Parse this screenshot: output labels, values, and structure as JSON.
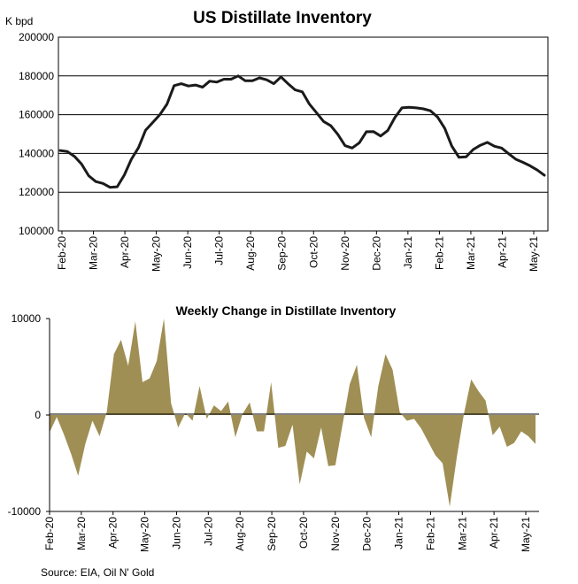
{
  "chart_data": [
    {
      "type": "line",
      "title": "US Distillate Inventory",
      "ylabel": "K bpd",
      "ylim": [
        100000,
        200000
      ],
      "yticks": [
        100000,
        120000,
        140000,
        160000,
        180000,
        200000
      ],
      "grid": true,
      "xticks": [
        "Feb-20",
        "Mar-20",
        "Apr-20",
        "May-20",
        "Jun-20",
        "Jul-20",
        "Aug-20",
        "Sep-20",
        "Oct-20",
        "Nov-20",
        "Dec-20",
        "Jan-21",
        "Feb-21",
        "Mar-21",
        "Apr-21",
        "May-21"
      ],
      "series": [
        {
          "color": "#1a1a1a",
          "values": [
            141500,
            141000,
            138500,
            134500,
            128500,
            125500,
            124500,
            122500,
            122800,
            128800,
            137000,
            143000,
            152000,
            156000,
            160000,
            165500,
            175000,
            176000,
            174800,
            175300,
            174200,
            177300,
            176800,
            178300,
            178300,
            180000,
            177500,
            177500,
            179000,
            178000,
            176000,
            179500,
            176000,
            172800,
            171800,
            165500,
            161000,
            156500,
            154300,
            149800,
            144000,
            142800,
            145500,
            151200,
            151300,
            149000,
            151800,
            158500,
            163500,
            163800,
            163500,
            163000,
            162000,
            158800,
            153000,
            143800,
            138000,
            138200,
            142000,
            144200,
            145700,
            143700,
            142800,
            139800,
            137000,
            135400,
            133600,
            131400,
            128700
          ]
        }
      ]
    },
    {
      "type": "area",
      "title": "Weekly Change in Distillate Inventory",
      "ylim": [
        -10000,
        10000
      ],
      "yticks": [
        -10000,
        0,
        10000
      ],
      "grid": false,
      "xticks": [
        "Feb-20",
        "Mar-20",
        "Apr-20",
        "May-20",
        "Jun-20",
        "Jul-20",
        "Aug-20",
        "Sep-20",
        "Oct-20",
        "Nov-20",
        "Dec-20",
        "Jan-21",
        "Feb-21",
        "Mar-21",
        "Apr-21",
        "May-21"
      ],
      "series": [
        {
          "color": "#a08f54",
          "values": [
            -1800,
            -200,
            -2000,
            -4000,
            -6300,
            -3000,
            -600,
            -2200,
            300,
            6300,
            7800,
            5100,
            9700,
            3400,
            3800,
            5600,
            10000,
            1200,
            -1300,
            200,
            -600,
            3000,
            -400,
            1000,
            400,
            1400,
            -2300,
            100,
            1300,
            -1700,
            -1700,
            3400,
            -3400,
            -3200,
            -1000,
            -7200,
            -3800,
            -4500,
            -1300,
            -5300,
            -5200,
            -1000,
            3200,
            5200,
            -300,
            -2300,
            3000,
            6300,
            4700,
            300,
            -600,
            -400,
            -1400,
            -2800,
            -4200,
            -5000,
            -9500,
            -4300,
            200,
            3700,
            2500,
            1500,
            -2100,
            -1200,
            -3300,
            -2900,
            -1700,
            -2200,
            -3000
          ]
        }
      ]
    }
  ],
  "source_note": "Source: EIA, Oil N' Gold"
}
